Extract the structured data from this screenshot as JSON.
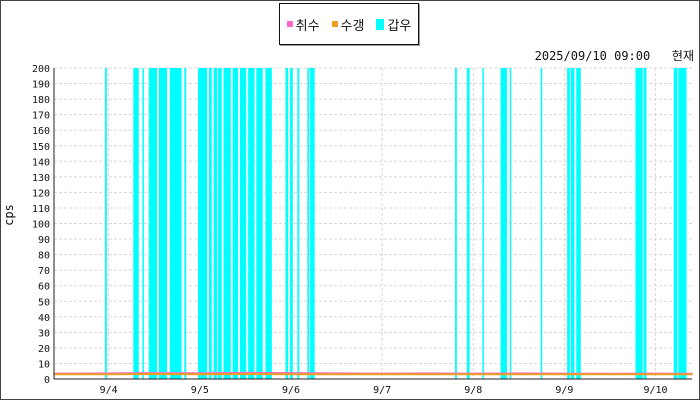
{
  "legend": [
    {
      "label": "취수",
      "color": "#ff66cc"
    },
    {
      "label": "수갱",
      "color": "#e8a020"
    },
    {
      "label": "갑우",
      "color": "#00ffff"
    }
  ],
  "timestamp_date": "2025/09/10 09:00",
  "timestamp_suffix": "현재",
  "chart_data": {
    "type": "area",
    "ylabel": "cps",
    "ylim": [
      0,
      200
    ],
    "yticks": [
      0,
      10,
      20,
      30,
      40,
      50,
      60,
      70,
      80,
      90,
      100,
      110,
      120,
      130,
      140,
      150,
      160,
      170,
      180,
      190,
      200
    ],
    "xlim": [
      3.4,
      10.4
    ],
    "xticks": [
      {
        "label": "9/4",
        "value": 4
      },
      {
        "label": "9/5",
        "value": 5
      },
      {
        "label": "9/6",
        "value": 6
      },
      {
        "label": "9/7",
        "value": 7
      },
      {
        "label": "9/8",
        "value": 8
      },
      {
        "label": "9/9",
        "value": 9
      },
      {
        "label": "9/10",
        "value": 10
      }
    ],
    "grid": true,
    "legend_position": "top-center",
    "series": [
      {
        "name": "취수",
        "color": "#ff66cc",
        "type": "line",
        "x": [
          3.4,
          4.0,
          4.5,
          5.0,
          5.5,
          6.0,
          6.5,
          7.0,
          7.5,
          8.0,
          8.5,
          9.0,
          9.5,
          10.0,
          10.4
        ],
        "values": [
          3.5,
          3.6,
          3.8,
          3.7,
          3.9,
          3.8,
          3.6,
          3.5,
          3.6,
          3.5,
          3.6,
          3.5,
          3.4,
          3.5,
          3.4
        ]
      },
      {
        "name": "수갱",
        "color": "#e8a020",
        "type": "line",
        "x": [
          3.4,
          4.0,
          4.5,
          5.0,
          5.5,
          6.0,
          6.5,
          7.0,
          7.5,
          8.0,
          8.5,
          9.0,
          9.5,
          10.0,
          10.4
        ],
        "values": [
          3.0,
          3.1,
          3.2,
          3.1,
          3.2,
          3.1,
          3.0,
          3.0,
          3.1,
          3.0,
          3.0,
          3.1,
          3.0,
          3.0,
          3.0
        ]
      },
      {
        "name": "갑우",
        "color": "#00ffff",
        "type": "bands",
        "value": 200,
        "intervals": [
          [
            3.96,
            3.98
          ],
          [
            4.27,
            4.33
          ],
          [
            4.37,
            4.38
          ],
          [
            4.44,
            4.53
          ],
          [
            4.55,
            4.64
          ],
          [
            4.67,
            4.8
          ],
          [
            4.83,
            4.85
          ],
          [
            4.98,
            5.08
          ],
          [
            5.1,
            5.13
          ],
          [
            5.15,
            5.19
          ],
          [
            5.2,
            5.24
          ],
          [
            5.26,
            5.34
          ],
          [
            5.36,
            5.42
          ],
          [
            5.44,
            5.51
          ],
          [
            5.53,
            5.6
          ],
          [
            5.62,
            5.69
          ],
          [
            5.72,
            5.79
          ],
          [
            5.94,
            5.97
          ],
          [
            5.99,
            6.02
          ],
          [
            6.07,
            6.09
          ],
          [
            6.18,
            6.2
          ],
          [
            6.21,
            6.26
          ],
          [
            7.8,
            7.82
          ],
          [
            7.93,
            7.96
          ],
          [
            8.1,
            8.11
          ],
          [
            8.3,
            8.37
          ],
          [
            8.4,
            8.41
          ],
          [
            8.74,
            8.75
          ],
          [
            9.03,
            9.06
          ],
          [
            9.07,
            9.11
          ],
          [
            9.13,
            9.18
          ],
          [
            9.78,
            9.86
          ],
          [
            9.87,
            9.9
          ],
          [
            10.2,
            10.24
          ],
          [
            10.25,
            10.34
          ]
        ]
      }
    ]
  }
}
